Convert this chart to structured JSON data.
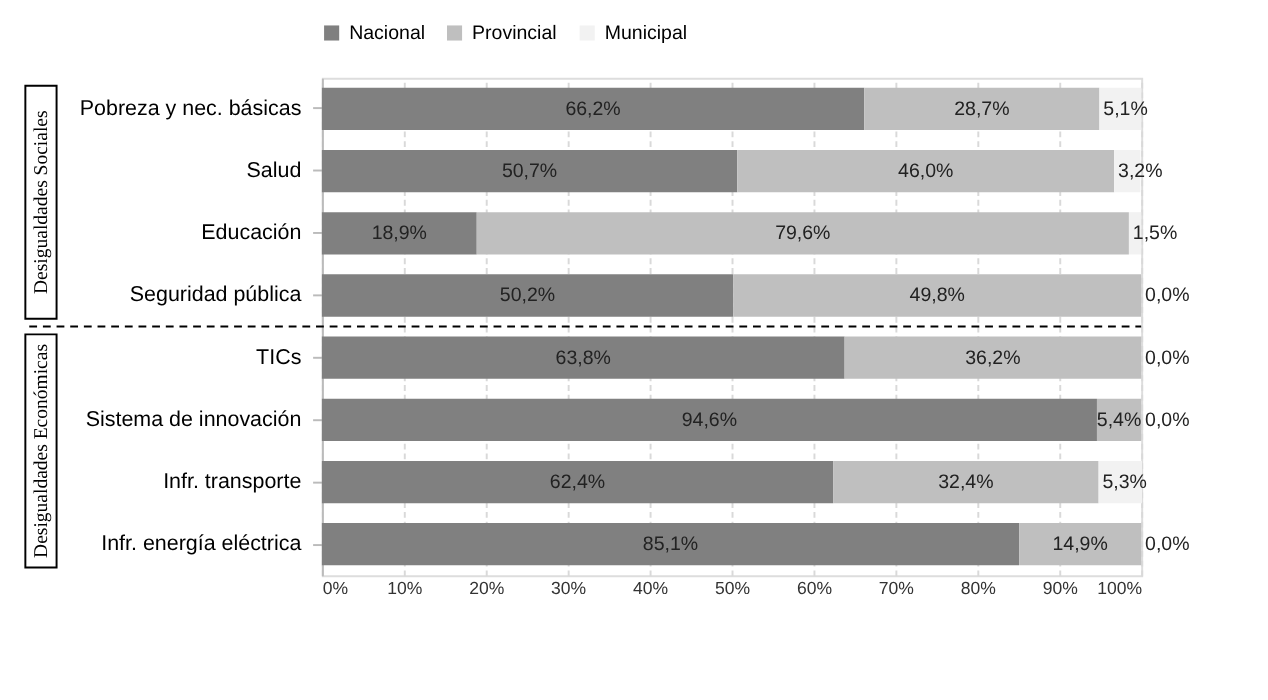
{
  "chart_data": {
    "type": "bar",
    "orientation": "horizontal",
    "stacked": true,
    "categories": [
      "Pobreza y nec. básicas",
      "Salud",
      "Educación",
      "Seguridad pública",
      "TICs",
      "Sistema de innovación",
      "Infr. transporte",
      "Infr. energía eléctrica"
    ],
    "series": [
      {
        "name": "Nacional",
        "color": "#808080",
        "values": [
          66.2,
          50.7,
          18.9,
          50.2,
          63.8,
          94.6,
          62.4,
          85.1
        ],
        "value_labels": [
          "66,2%",
          "50,7%",
          "18,9%",
          "50,2%",
          "63,8%",
          "94,6%",
          "62,4%",
          "85,1%"
        ]
      },
      {
        "name": "Provincial",
        "color": "#bfbfbf",
        "values": [
          28.7,
          46.0,
          79.6,
          49.8,
          36.2,
          5.4,
          32.4,
          14.9
        ],
        "value_labels": [
          "28,7%",
          "46,0%",
          "79,6%",
          "49,8%",
          "36,2%",
          "5,4%",
          "32,4%",
          "14,9%"
        ]
      },
      {
        "name": "Municipal",
        "color": "#f2f2f2",
        "values": [
          5.1,
          3.2,
          1.5,
          0.0,
          0.0,
          0.0,
          5.3,
          0.0
        ],
        "value_labels": [
          "5,1%",
          "3,2%",
          "1,5%",
          "0,0%",
          "0,0%",
          "0,0%",
          "5,3%",
          "0,0%"
        ]
      }
    ],
    "xlim": [
      0,
      100
    ],
    "xticks": [
      {
        "value": 0,
        "label": "0%"
      },
      {
        "value": 10,
        "label": "10%"
      },
      {
        "value": 20,
        "label": "20%"
      },
      {
        "value": 30,
        "label": "30%"
      },
      {
        "value": 40,
        "label": "40%"
      },
      {
        "value": 50,
        "label": "50%"
      },
      {
        "value": 60,
        "label": "60%"
      },
      {
        "value": 70,
        "label": "70%"
      },
      {
        "value": 80,
        "label": "80%"
      },
      {
        "value": 90,
        "label": "90%"
      },
      {
        "value": 100,
        "label": "100%"
      }
    ],
    "grid": "x",
    "legend": "top",
    "ref_lines": [
      {
        "axis": "y",
        "value": "TICs",
        "line_style": "dashed",
        "color": "#000000"
      }
    ],
    "annotations": [
      "Desigualdades Sociales",
      "Desigualdades Económicas"
    ]
  }
}
